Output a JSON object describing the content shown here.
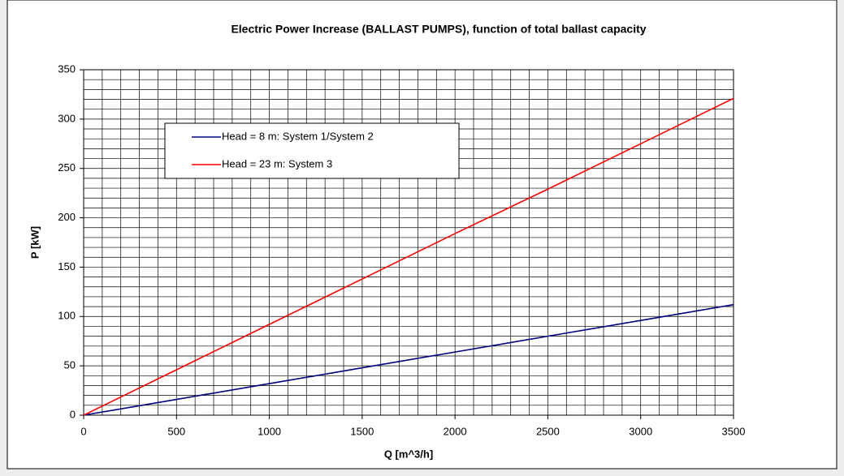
{
  "chart_data": {
    "type": "line",
    "title": "Electric Power Increase (BALLAST PUMPS), function of total ballast capacity",
    "xlabel": "Q [m^3/h]",
    "ylabel": "P [kW]",
    "x": [
      0,
      500,
      1000,
      1500,
      2000,
      2500,
      3000,
      3500
    ],
    "series": [
      {
        "name": "Head = 8 m: System 1/System 2",
        "color": "#000080",
        "values": [
          0,
          16,
          32,
          48,
          64,
          80,
          96,
          112
        ]
      },
      {
        "name": "Head = 23 m: System 3",
        "color": "#ff0000",
        "values": [
          0,
          46,
          92,
          138,
          184,
          229,
          275,
          321
        ]
      }
    ],
    "xlim": [
      0,
      3500
    ],
    "xticks": [
      0,
      500,
      1000,
      1500,
      2000,
      2500,
      3000,
      3500
    ],
    "ylim": [
      0,
      350
    ],
    "yticks": [
      0,
      50,
      100,
      150,
      200,
      250,
      300,
      350
    ],
    "grid": true,
    "minor_grid_step": [
      100,
      10
    ],
    "legend_position": "upper left"
  }
}
